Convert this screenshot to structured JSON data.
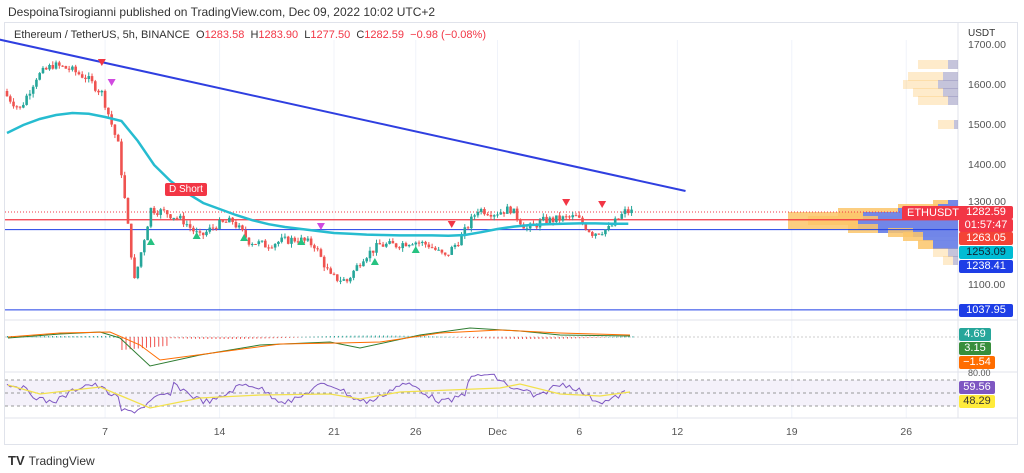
{
  "header": {
    "published": "DespoinaTsirogianni published on TradingView.com, Dec 09, 2022 10:02 UTC+2"
  },
  "legend": {
    "symbol": "Ethereum / TetherUS, 5h, BINANCE",
    "o_label": "O",
    "o": "1283.58",
    "h_label": "H",
    "h": "1283.90",
    "l_label": "L",
    "l": "1277.50",
    "c_label": "C",
    "c": "1282.59",
    "change": "−0.98 (−0.08%)"
  },
  "price_axis": {
    "currency": "USDT",
    "ticks": [
      "1700.00",
      "1600.00",
      "1500.00",
      "1400.00",
      "1300.00",
      "1100.00"
    ]
  },
  "tags": {
    "symbol": "ETHUSDT",
    "last": "1282.59",
    "countdown": "01:57:47",
    "red_line": "1263.05",
    "ma": "1253.09",
    "blue_line": "1238.41",
    "support": "1037.95",
    "macd": "4.69",
    "signal": "3.15",
    "hist": "−1.54",
    "rsi_top": "80.00",
    "rsi": "59.56",
    "rsi_ma": "48.29"
  },
  "annotations": {
    "d_short": "D Short"
  },
  "footer": {
    "brand": "TradingView"
  },
  "colors": {
    "up": "#26a69a",
    "down": "#ef5350",
    "ma": "#26bcd0",
    "trend": "#2f3fe0",
    "red": "#f23645",
    "blue": "#1e3ee6"
  },
  "chart_data": {
    "type": "candlestick",
    "title": "Ethereum / TetherUS, 5h, BINANCE",
    "x_ticks": [
      "7",
      "14",
      "21",
      "26",
      "Dec",
      "6",
      "12",
      "19",
      "26"
    ],
    "x_tick_days": [
      7,
      14,
      21,
      26,
      31,
      36,
      42,
      49,
      56
    ],
    "ylim": [
      1000,
      1720
    ],
    "days": [
      1,
      2,
      3,
      4,
      5,
      6,
      7,
      8,
      9,
      10,
      11,
      12,
      13,
      14,
      15,
      16,
      17,
      18,
      19,
      20,
      21,
      22,
      23,
      24,
      25,
      26,
      27,
      28,
      29,
      30,
      31,
      32,
      33,
      34,
      35,
      36,
      37,
      38,
      39
    ],
    "closes": [
      1580,
      1540,
      1620,
      1650,
      1640,
      1620,
      1580,
      1450,
      1110,
      1290,
      1280,
      1260,
      1220,
      1250,
      1260,
      1210,
      1200,
      1210,
      1215,
      1200,
      1120,
      1110,
      1170,
      1200,
      1200,
      1210,
      1200,
      1170,
      1220,
      1290,
      1280,
      1290,
      1240,
      1260,
      1265,
      1270,
      1230,
      1240,
      1283
    ],
    "ma_values": [
      1480,
      1500,
      1515,
      1525,
      1530,
      1528,
      1520,
      1510,
      1460,
      1400,
      1360,
      1330,
      1305,
      1290,
      1275,
      1262,
      1252,
      1245,
      1240,
      1235,
      1230,
      1228,
      1226,
      1225,
      1224,
      1224,
      1224,
      1223,
      1225,
      1232,
      1240,
      1246,
      1250,
      1252,
      1253,
      1254,
      1254,
      1253,
      1253
    ],
    "trendline": {
      "from": [
        3.5,
        1685
      ],
      "to": [
        42.5,
        1335
      ]
    },
    "horizontal_lines": [
      1263.05,
      1238.41,
      1037.95
    ]
  }
}
